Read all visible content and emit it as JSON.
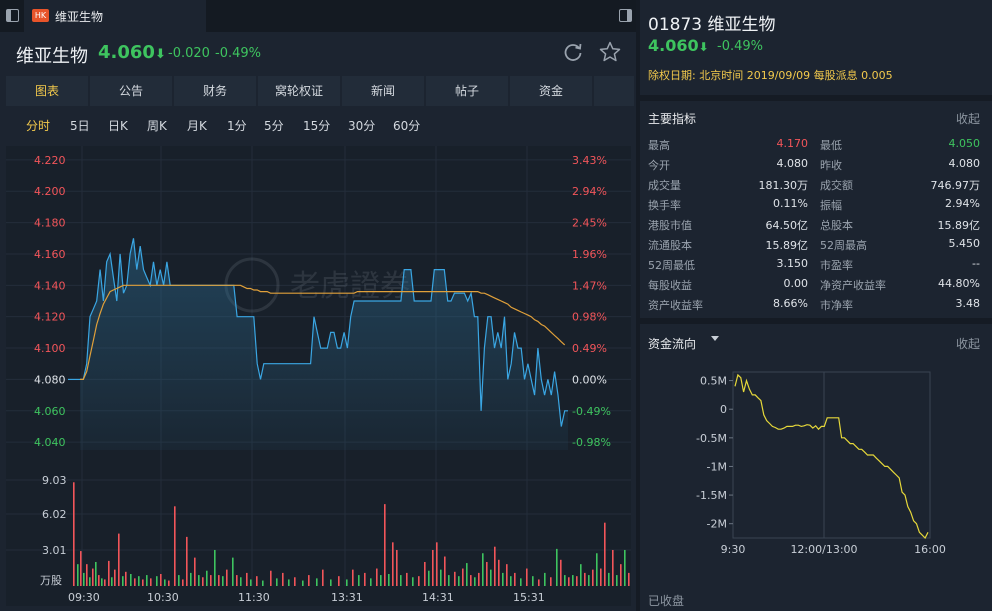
{
  "tab": {
    "badge": "HK",
    "title": "维亚生物"
  },
  "header": {
    "name": "维亚生物",
    "price": "4.060",
    "change": "-0.020",
    "pct": "-0.49%"
  },
  "nav_tabs": [
    "图表",
    "公告",
    "财务",
    "窝轮权证",
    "新闻",
    "帖子",
    "资金"
  ],
  "periods": [
    "分时",
    "5日",
    "日K",
    "周K",
    "月K",
    "1分",
    "5分",
    "15分",
    "30分",
    "60分"
  ],
  "chart_data": [
    {
      "type": "line",
      "name": "intraday",
      "price_ticks": [
        "4.220",
        "4.200",
        "4.180",
        "4.160",
        "4.140",
        "4.120",
        "4.100",
        "4.080",
        "4.060",
        "4.040"
      ],
      "pct_ticks": [
        "3.43%",
        "2.94%",
        "2.45%",
        "1.96%",
        "1.47%",
        "0.98%",
        "0.49%",
        "0.00%",
        "-0.49%",
        "-0.98%"
      ],
      "prev_close": 4.08,
      "ylim": [
        4.035,
        4.225
      ],
      "time_labels": [
        "09:30",
        "10:30",
        "11:30",
        "13:31",
        "14:31",
        "15:31"
      ],
      "volume_ticks": [
        "9.03",
        "6.02",
        "3.01",
        "万股"
      ],
      "watermark": "老虎證券",
      "price_series": [
        4.08,
        4.08,
        4.09,
        4.12,
        4.125,
        4.13,
        4.15,
        4.13,
        4.155,
        4.16,
        4.145,
        4.13,
        4.16,
        4.135,
        4.14,
        4.16,
        4.17,
        4.15,
        4.165,
        4.15,
        4.145,
        4.14,
        4.155,
        4.14,
        4.15,
        4.14,
        4.155,
        4.14,
        4.14,
        4.14,
        4.14,
        4.14,
        4.14,
        4.14,
        4.14,
        4.14,
        4.14,
        4.14,
        4.14,
        4.14,
        4.14,
        4.14,
        4.14,
        4.14,
        4.14,
        4.14,
        4.14,
        4.12,
        4.12,
        4.12,
        4.12,
        4.12,
        4.12,
        4.09,
        4.08,
        4.09,
        4.09,
        4.09,
        4.09,
        4.09,
        4.09,
        4.09,
        4.09,
        4.09,
        4.09,
        4.09,
        4.09,
        4.09,
        4.09,
        4.09,
        4.12,
        4.11,
        4.1,
        4.1,
        4.1,
        4.11,
        4.11,
        4.1,
        4.1,
        4.11,
        4.1,
        4.12,
        4.13,
        4.13,
        4.13,
        4.13,
        4.13,
        4.13,
        4.13,
        4.13,
        4.13,
        4.13,
        4.13,
        4.13,
        4.13,
        4.13,
        4.13,
        4.15,
        4.15,
        4.15,
        4.13,
        4.13,
        4.13,
        4.13,
        4.13,
        4.13,
        4.15,
        4.15,
        4.15,
        4.15,
        4.13,
        4.13,
        4.135,
        4.135,
        4.135,
        4.135,
        4.13,
        4.135,
        4.12,
        4.12,
        4.06,
        4.1,
        4.12,
        4.12,
        4.1,
        4.11,
        4.1,
        4.12,
        4.08,
        4.09,
        4.11,
        4.1,
        4.1,
        4.08,
        4.09,
        4.08,
        4.07,
        4.1,
        4.08,
        4.07,
        4.08,
        4.07,
        4.085,
        4.07,
        4.05,
        4.06,
        4.06
      ],
      "avg_series": [
        4.08,
        4.08,
        4.085,
        4.095,
        4.105,
        4.115,
        4.122,
        4.128,
        4.132,
        4.136,
        4.137,
        4.138,
        4.139,
        4.14,
        4.14,
        4.14,
        4.14,
        4.14,
        4.14,
        4.14,
        4.14,
        4.14,
        4.14,
        4.14,
        4.14,
        4.14,
        4.14,
        4.14,
        4.14,
        4.14,
        4.14,
        4.14,
        4.14,
        4.14,
        4.14,
        4.14,
        4.14,
        4.14,
        4.14,
        4.14,
        4.14,
        4.14,
        4.14,
        4.14,
        4.14,
        4.14,
        4.14,
        4.14,
        4.14,
        4.139,
        4.138,
        4.138,
        4.137,
        4.137,
        4.136,
        4.136,
        4.136,
        4.135,
        4.135,
        4.135,
        4.135,
        4.135,
        4.135,
        4.135,
        4.135,
        4.135,
        4.135,
        4.135,
        4.135,
        4.135,
        4.135,
        4.135,
        4.135,
        4.135,
        4.135,
        4.135,
        4.135,
        4.135,
        4.135,
        4.135,
        4.135,
        4.135,
        4.135,
        4.136,
        4.136,
        4.136,
        4.136,
        4.136,
        4.136,
        4.136,
        4.136,
        4.136,
        4.136,
        4.136,
        4.136,
        4.136,
        4.136,
        4.136,
        4.136,
        4.136,
        4.136,
        4.136,
        4.136,
        4.136,
        4.136,
        4.136,
        4.136,
        4.136,
        4.136,
        4.136,
        4.136,
        4.136,
        4.136,
        4.136,
        4.136,
        4.136,
        4.136,
        4.136,
        4.136,
        4.136,
        4.135,
        4.135,
        4.134,
        4.133,
        4.132,
        4.131,
        4.13,
        4.129,
        4.128,
        4.126,
        4.125,
        4.124,
        4.123,
        4.122,
        4.121,
        4.12,
        4.118,
        4.117,
        4.115,
        4.114,
        4.112,
        4.11,
        4.108,
        4.106,
        4.104,
        4.102
      ],
      "volume_max": 9.03,
      "volume_bars": [
        [
          3,
          9.5,
          "r"
        ],
        [
          7,
          2.0,
          "g"
        ],
        [
          10,
          3.2,
          "r"
        ],
        [
          13,
          1.2,
          "g"
        ],
        [
          16,
          2.0,
          "r"
        ],
        [
          19,
          0.8,
          "g"
        ],
        [
          22,
          1.6,
          "r"
        ],
        [
          25,
          2.2,
          "g"
        ],
        [
          28,
          1.0,
          "r"
        ],
        [
          31,
          0.7,
          "g"
        ],
        [
          34,
          0.6,
          "r"
        ],
        [
          38,
          2.3,
          "r"
        ],
        [
          41,
          0.8,
          "g"
        ],
        [
          44,
          1.5,
          "r"
        ],
        [
          48,
          4.8,
          "r"
        ],
        [
          52,
          0.9,
          "g"
        ],
        [
          55,
          1.3,
          "r"
        ],
        [
          60,
          1.1,
          "g"
        ],
        [
          64,
          0.7,
          "r"
        ],
        [
          68,
          0.9,
          "g"
        ],
        [
          72,
          0.6,
          "r"
        ],
        [
          76,
          1.0,
          "g"
        ],
        [
          80,
          0.7,
          "r"
        ],
        [
          86,
          0.9,
          "g"
        ],
        [
          90,
          1.1,
          "r"
        ],
        [
          94,
          0.6,
          "g"
        ],
        [
          98,
          0.5,
          "r"
        ],
        [
          104,
          7.3,
          "r"
        ],
        [
          108,
          1.0,
          "g"
        ],
        [
          112,
          0.6,
          "r"
        ],
        [
          116,
          4.5,
          "r"
        ],
        [
          120,
          1.2,
          "g"
        ],
        [
          124,
          2.6,
          "r"
        ],
        [
          128,
          1.0,
          "g"
        ],
        [
          132,
          0.8,
          "r"
        ],
        [
          136,
          1.4,
          "g"
        ],
        [
          140,
          1.0,
          "r"
        ],
        [
          144,
          3.3,
          "g"
        ],
        [
          148,
          1.0,
          "r"
        ],
        [
          152,
          0.9,
          "g"
        ],
        [
          156,
          1.5,
          "r"
        ],
        [
          162,
          2.6,
          "g"
        ],
        [
          166,
          1.0,
          "r"
        ],
        [
          170,
          0.8,
          "g"
        ],
        [
          176,
          1.2,
          "r"
        ],
        [
          180,
          0.6,
          "g"
        ],
        [
          186,
          0.9,
          "r"
        ],
        [
          192,
          0.5,
          "g"
        ],
        [
          200,
          1.4,
          "r"
        ],
        [
          206,
          0.7,
          "g"
        ],
        [
          212,
          1.2,
          "r"
        ],
        [
          218,
          0.6,
          "g"
        ],
        [
          224,
          0.8,
          "r"
        ],
        [
          232,
          0.5,
          "g"
        ],
        [
          238,
          1.0,
          "r"
        ],
        [
          246,
          0.7,
          "g"
        ],
        [
          252,
          1.5,
          "r"
        ],
        [
          260,
          0.6,
          "g"
        ],
        [
          268,
          0.9,
          "r"
        ],
        [
          276,
          0.6,
          "g"
        ],
        [
          282,
          1.5,
          "r"
        ],
        [
          288,
          1.0,
          "g"
        ],
        [
          294,
          1.2,
          "r"
        ],
        [
          300,
          0.7,
          "g"
        ],
        [
          306,
          1.6,
          "r"
        ],
        [
          310,
          1.0,
          "g"
        ],
        [
          314,
          7.5,
          "r"
        ],
        [
          318,
          1.1,
          "g"
        ],
        [
          322,
          4.0,
          "r"
        ],
        [
          326,
          3.3,
          "r"
        ],
        [
          330,
          1.0,
          "g"
        ],
        [
          336,
          1.2,
          "r"
        ],
        [
          342,
          0.8,
          "g"
        ],
        [
          348,
          0.9,
          "r"
        ],
        [
          354,
          2.2,
          "r"
        ],
        [
          358,
          1.4,
          "g"
        ],
        [
          362,
          3.3,
          "r"
        ],
        [
          366,
          4.0,
          "r"
        ],
        [
          370,
          1.5,
          "g"
        ],
        [
          374,
          2.7,
          "r"
        ],
        [
          378,
          1.0,
          "g"
        ],
        [
          384,
          1.3,
          "r"
        ],
        [
          388,
          0.9,
          "g"
        ],
        [
          392,
          1.6,
          "r"
        ],
        [
          396,
          2.1,
          "g"
        ],
        [
          400,
          1.0,
          "r"
        ],
        [
          404,
          0.8,
          "g"
        ],
        [
          408,
          1.2,
          "r"
        ],
        [
          412,
          3.0,
          "g"
        ],
        [
          416,
          2.2,
          "r"
        ],
        [
          420,
          1.5,
          "g"
        ],
        [
          424,
          3.6,
          "r"
        ],
        [
          428,
          2.4,
          "r"
        ],
        [
          432,
          1.2,
          "g"
        ],
        [
          436,
          2.0,
          "r"
        ],
        [
          440,
          0.9,
          "g"
        ],
        [
          444,
          1.2,
          "r"
        ],
        [
          450,
          0.7,
          "g"
        ],
        [
          456,
          1.6,
          "r"
        ],
        [
          462,
          0.9,
          "g"
        ],
        [
          468,
          0.6,
          "r"
        ],
        [
          474,
          1.2,
          "g"
        ],
        [
          480,
          0.8,
          "r"
        ],
        [
          486,
          3.4,
          "g"
        ],
        [
          490,
          2.4,
          "r"
        ],
        [
          494,
          1.0,
          "g"
        ],
        [
          498,
          0.8,
          "r"
        ],
        [
          502,
          1.0,
          "g"
        ],
        [
          506,
          0.9,
          "r"
        ],
        [
          510,
          2.0,
          "g"
        ],
        [
          514,
          1.2,
          "r"
        ],
        [
          518,
          1.0,
          "g"
        ],
        [
          522,
          1.5,
          "r"
        ],
        [
          526,
          3.0,
          "g"
        ],
        [
          530,
          1.6,
          "r"
        ],
        [
          534,
          5.8,
          "r"
        ],
        [
          538,
          1.2,
          "g"
        ],
        [
          542,
          3.3,
          "r"
        ],
        [
          546,
          1.0,
          "g"
        ],
        [
          550,
          2.0,
          "r"
        ],
        [
          554,
          3.3,
          "g"
        ],
        [
          558,
          1.2,
          "r"
        ],
        [
          562,
          1.6,
          "r"
        ],
        [
          565,
          0.8,
          "g"
        ]
      ]
    },
    {
      "type": "line",
      "name": "fund-flow",
      "y_ticks": [
        "0.5M",
        "0",
        "-0.5M",
        "-1M",
        "-1.5M",
        "-2M"
      ],
      "y_values": [
        0.5,
        0,
        -0.5,
        -1,
        -1.5,
        -2
      ],
      "x_ticks": [
        "9:30",
        "12:00/13:00",
        "16:00"
      ],
      "ylim": [
        -2.25,
        0.65
      ],
      "series": [
        0.4,
        0.6,
        0.55,
        0.3,
        0.5,
        0.35,
        0.25,
        0.25,
        0.2,
        0.15,
        -0.1,
        -0.2,
        -0.25,
        -0.3,
        -0.32,
        -0.35,
        -0.35,
        -0.33,
        -0.3,
        -0.3,
        -0.3,
        -0.28,
        -0.28,
        -0.3,
        -0.29,
        -0.27,
        -0.28,
        -0.33,
        -0.29,
        -0.35,
        -0.3,
        -0.3,
        -0.15,
        -0.15,
        -0.15,
        -0.15,
        -0.15,
        -0.5,
        -0.5,
        -0.55,
        -0.6,
        -0.6,
        -0.65,
        -0.7,
        -0.7,
        -0.75,
        -0.8,
        -0.8,
        -0.8,
        -0.85,
        -0.9,
        -0.95,
        -1.0,
        -1.0,
        -1.05,
        -1.1,
        -1.15,
        -1.2,
        -1.45,
        -1.5,
        -1.7,
        -1.8,
        -1.95,
        -2.0,
        -2.15,
        -2.2,
        -2.25,
        -2.15
      ]
    }
  ],
  "right": {
    "code_name": "01873 维亚生物",
    "price": "4.060",
    "pct": "-0.49%",
    "notice": "除权日期: 北京时间 2019/09/09 每股派息 0.005",
    "indicators_title": "主要指标",
    "collapse": "收起",
    "indicators": [
      [
        "最高",
        "4.170",
        "最低",
        "4.050"
      ],
      [
        "今开",
        "4.080",
        "昨收",
        "4.080"
      ],
      [
        "成交量",
        "181.30万",
        "成交额",
        "746.97万"
      ],
      [
        "换手率",
        "0.11%",
        "振幅",
        "2.94%"
      ],
      [
        "港股市值",
        "64.50亿",
        "总股本",
        "15.89亿"
      ],
      [
        "流通股本",
        "15.89亿",
        "52周最高",
        "5.450"
      ],
      [
        "52周最低",
        "3.150",
        "市盈率",
        "--"
      ],
      [
        "每股收益",
        "0.00",
        "净资产收益率",
        "44.80%"
      ],
      [
        "资产收益率",
        "8.66%",
        "市净率",
        "3.48"
      ]
    ],
    "flow_title": "资金流向",
    "status": "已收盘"
  },
  "colors": {
    "up": "#f2555a",
    "down": "#3ec45f",
    "accent": "#f2c94c",
    "price_line": "#3aa6e3",
    "avg_line": "#e0a03a",
    "flow_line": "#e6d83a"
  }
}
